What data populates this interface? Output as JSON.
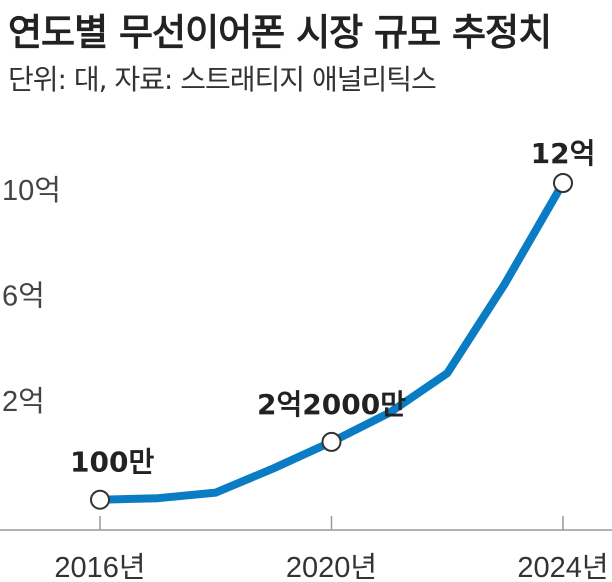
{
  "title": "연도별 무선이어폰 시장 규모 추정치",
  "subtitle": "단위: 대, 자료: 스트래티지 애널리틱스",
  "colors": {
    "line": "#0a7cc4",
    "axis": "#999999",
    "marker_fill": "#ffffff",
    "marker_stroke": "#333333"
  },
  "chart_data": {
    "type": "line",
    "title": "연도별 무선이어폰 시장 규모 추정치",
    "unit": "대",
    "source": "스트래티지 애널리틱스",
    "x": [
      2016,
      2017,
      2018,
      2019,
      2020,
      2021,
      2022,
      2023,
      2024
    ],
    "series": [
      {
        "values": [
          1000000,
          7000000,
          28000000,
          120000000,
          220000000,
          330000000,
          480000000,
          820000000,
          1200000000
        ]
      }
    ],
    "xlim": [
      2016,
      2024
    ],
    "ylim": [
      0,
      1200000000
    ],
    "xticks": [
      {
        "x": 2016,
        "label": "2016년"
      },
      {
        "x": 2020,
        "label": "2020년"
      },
      {
        "x": 2024,
        "label": "2024년"
      }
    ],
    "yticks": [
      {
        "y": 200000000,
        "label": "2억"
      },
      {
        "y": 600000000,
        "label": "6억"
      },
      {
        "y": 1000000000,
        "label": "10억"
      }
    ],
    "annotations": [
      {
        "x": 2016,
        "y": 1000000,
        "label": "100만"
      },
      {
        "x": 2020,
        "y": 220000000,
        "label": "2억2000만"
      },
      {
        "x": 2024,
        "y": 1200000000,
        "label": "12억"
      }
    ],
    "grid": false,
    "legend": "none"
  }
}
